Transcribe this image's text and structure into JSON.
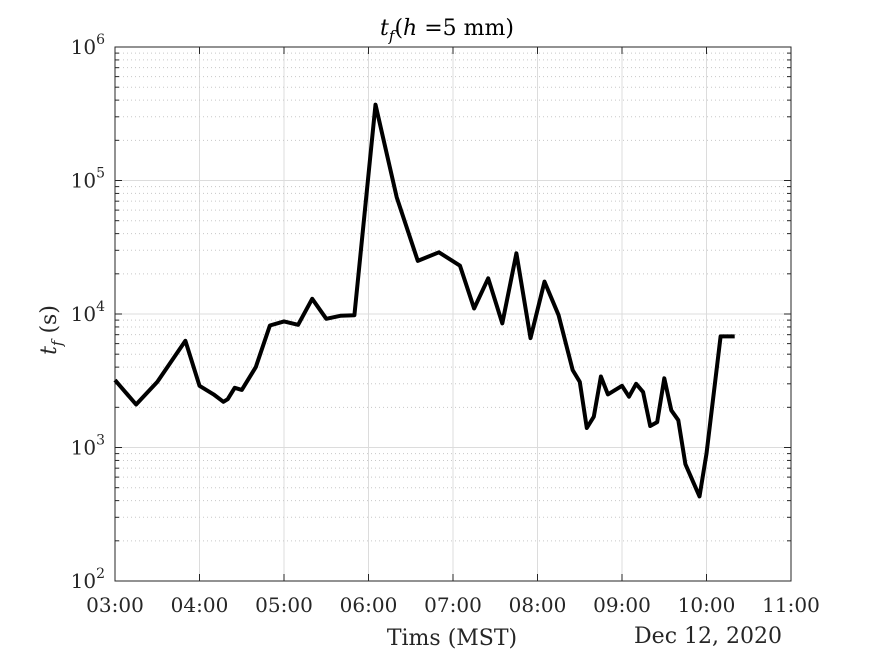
{
  "chart_data": {
    "type": "line",
    "title": "t_f(h =5 mm)",
    "xlabel": "Tims (MST)",
    "ylabel": "t_f (s)",
    "date_label": "Dec 12, 2020",
    "xlim": [
      "03:00",
      "11:00"
    ],
    "ylim": [
      100,
      1000000
    ],
    "yscale": "log",
    "grid": true,
    "x_ticks": [
      "03:00",
      "04:00",
      "05:00",
      "06:00",
      "07:00",
      "08:00",
      "09:00",
      "10:00",
      "11:00"
    ],
    "y_ticks": [
      {
        "base": "10",
        "exp": "2",
        "value": 100
      },
      {
        "base": "10",
        "exp": "3",
        "value": 1000
      },
      {
        "base": "10",
        "exp": "4",
        "value": 10000
      },
      {
        "base": "10",
        "exp": "5",
        "value": 100000
      },
      {
        "base": "10",
        "exp": "6",
        "value": 1000000
      }
    ],
    "series": [
      {
        "color": "#000000",
        "x": [
          "03:00",
          "03:15",
          "03:30",
          "03:50",
          "04:00",
          "04:10",
          "04:17",
          "04:20",
          "04:25",
          "04:30",
          "04:40",
          "04:50",
          "05:00",
          "05:10",
          "05:20",
          "05:30",
          "05:40",
          "05:50",
          "06:05",
          "06:20",
          "06:35",
          "06:50",
          "07:05",
          "07:15",
          "07:25",
          "07:35",
          "07:45",
          "07:55",
          "08:05",
          "08:15",
          "08:25",
          "08:30",
          "08:35",
          "08:40",
          "08:45",
          "08:50",
          "09:00",
          "09:05",
          "09:10",
          "09:15",
          "09:20",
          "09:25",
          "09:30",
          "09:35",
          "09:40",
          "09:45",
          "09:55",
          "10:00",
          "10:10",
          "10:20"
        ],
        "values": [
          3200,
          2100,
          3100,
          6300,
          2900,
          2500,
          2200,
          2300,
          2800,
          2700,
          4000,
          8200,
          8800,
          8300,
          13000,
          9200,
          9700,
          9800,
          370000,
          75000,
          25000,
          29000,
          23000,
          11000,
          18500,
          8500,
          28500,
          6600,
          17500,
          9800,
          3800,
          3100,
          1400,
          1700,
          3400,
          2500,
          2900,
          2400,
          3000,
          2600,
          1450,
          1550,
          3300,
          1900,
          1600,
          750,
          430,
          900,
          6800,
          6800
        ]
      }
    ]
  }
}
